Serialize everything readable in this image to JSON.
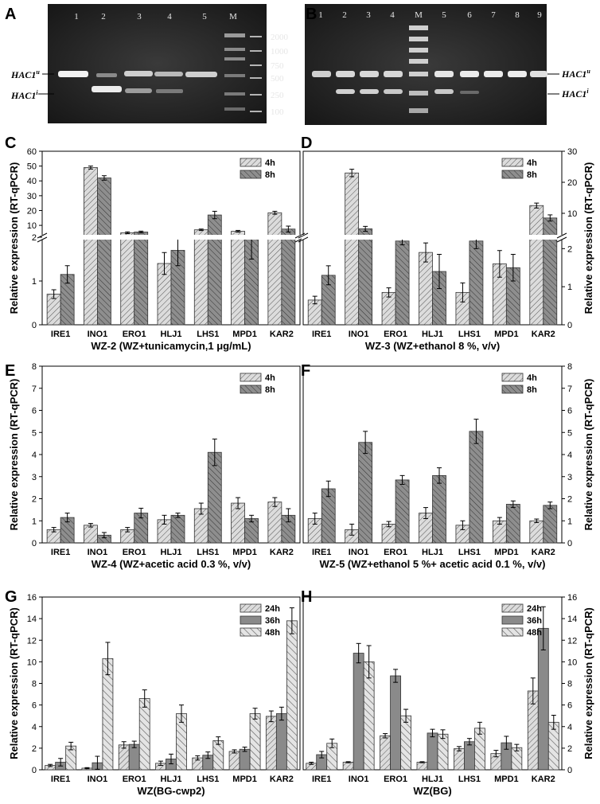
{
  "panel_letters": [
    "A",
    "B",
    "C",
    "D",
    "E",
    "F",
    "G",
    "H"
  ],
  "gels": [
    {
      "letter": "A",
      "lanes": [
        "1",
        "2",
        "3",
        "4",
        "5",
        "M"
      ],
      "marker_sizes": [
        "2000",
        "1000",
        "750",
        "500",
        "250",
        "100"
      ],
      "band_labels": {
        "u": "HAC1",
        "u_sup": "u",
        "i": "HAC1",
        "i_sup": "i"
      }
    },
    {
      "letter": "B",
      "lanes": [
        "1",
        "2",
        "3",
        "4",
        "M",
        "5",
        "6",
        "7",
        "8",
        "9"
      ],
      "band_labels": {
        "u": "HAC1",
        "u_sup": "u",
        "i": "HAC1",
        "i_sup": "i"
      }
    }
  ],
  "chart_data": [
    {
      "id": "C",
      "type": "bar",
      "categories": [
        "IRE1",
        "INO1",
        "ERO1",
        "HLJ1",
        "LHS1",
        "MPD1",
        "KAR2"
      ],
      "series": [
        {
          "name": "4h",
          "values": [
            0.7,
            49,
            5,
            1.4,
            7,
            6,
            18.5
          ],
          "errors": [
            0.1,
            1,
            0.6,
            0.25,
            0.5,
            0.6,
            1
          ]
        },
        {
          "name": "8h",
          "values": [
            1.15,
            42,
            5.5,
            1.7,
            17,
            2,
            7.5
          ],
          "errors": [
            0.2,
            1.5,
            0.6,
            0.35,
            2.5,
            0.5,
            2
          ]
        }
      ],
      "xlabel": "WZ-2 (WZ+tunicamycin,1 μg/mL)",
      "ylabel": "Relative expression (RT-qPCR)",
      "axis_side": "left",
      "broken_axis": {
        "lower": [
          0,
          2
        ],
        "upper": [
          2,
          60
        ]
      },
      "yticks_lower": [
        "0",
        "1",
        "2"
      ],
      "yticks_upper": [
        "10",
        "20",
        "30",
        "40",
        "50",
        "60"
      ],
      "legend": "top-right"
    },
    {
      "id": "D",
      "type": "bar",
      "categories": [
        "IRE1",
        "INO1",
        "ERO1",
        "HLJ1",
        "LHS1",
        "MPD1",
        "KAR2"
      ],
      "series": [
        {
          "name": "4h",
          "values": [
            0.65,
            23,
            0.85,
            1.9,
            0.85,
            1.6,
            12.5
          ],
          "errors": [
            0.1,
            1.2,
            0.12,
            0.25,
            0.25,
            0.35,
            0.8
          ]
        },
        {
          "name": "8h",
          "values": [
            1.3,
            5,
            2.2,
            1.4,
            2.2,
            1.5,
            8.5
          ],
          "errors": [
            0.25,
            0.8,
            0.1,
            0.45,
            0.2,
            0.35,
            1
          ]
        }
      ],
      "xlabel": "WZ-3 (WZ+ethanol 8 %, v/v)",
      "ylabel": "Relative expression (RT-qPCR)",
      "axis_side": "right",
      "broken_axis": {
        "lower": [
          0,
          2.3
        ],
        "upper": [
          2.3,
          30
        ]
      },
      "yticks_lower": [
        "0",
        "1",
        "2"
      ],
      "yticks_upper": [
        "10",
        "20",
        "30"
      ],
      "legend": "top-right"
    },
    {
      "id": "E",
      "type": "bar",
      "categories": [
        "IRE1",
        "INO1",
        "ERO1",
        "HLJ1",
        "LHS1",
        "MPD1",
        "KAR2"
      ],
      "series": [
        {
          "name": "4h",
          "values": [
            0.6,
            0.8,
            0.6,
            1.05,
            1.55,
            1.8,
            1.85
          ],
          "errors": [
            0.1,
            0.08,
            0.1,
            0.2,
            0.25,
            0.25,
            0.2
          ]
        },
        {
          "name": "8h",
          "values": [
            1.15,
            0.35,
            1.35,
            1.25,
            4.1,
            1.1,
            1.25
          ],
          "errors": [
            0.2,
            0.12,
            0.22,
            0.1,
            0.6,
            0.15,
            0.3
          ]
        }
      ],
      "xlabel": "WZ-4 (WZ+acetic acid 0.3 %, v/v)",
      "ylabel": "Relative expression (RT-qPCR)",
      "axis_side": "left",
      "ylim": [
        0,
        8
      ],
      "yticks": [
        "0",
        "1",
        "2",
        "3",
        "4",
        "5",
        "6",
        "7",
        "8"
      ],
      "legend": "top-right"
    },
    {
      "id": "F",
      "type": "bar",
      "categories": [
        "IRE1",
        "INO1",
        "ERO1",
        "HLJ1",
        "LHS1",
        "MPD1",
        "KAR2"
      ],
      "series": [
        {
          "name": "4h",
          "values": [
            1.1,
            0.6,
            0.85,
            1.35,
            0.8,
            1,
            1
          ],
          "errors": [
            0.25,
            0.25,
            0.12,
            0.25,
            0.2,
            0.15,
            0.08
          ]
        },
        {
          "name": "8h",
          "values": [
            2.45,
            4.55,
            2.85,
            3.05,
            5.05,
            1.75,
            1.7
          ],
          "errors": [
            0.35,
            0.5,
            0.2,
            0.35,
            0.55,
            0.15,
            0.15
          ]
        }
      ],
      "xlabel": "WZ-5 (WZ+ethanol 5 %+ acetic acid 0.1 %, v/v)",
      "ylabel": "Relative expression (RT-qPCR)",
      "axis_side": "right",
      "ylim": [
        0,
        8
      ],
      "yticks": [
        "0",
        "1",
        "2",
        "3",
        "4",
        "5",
        "6",
        "7",
        "8"
      ],
      "legend": "top-right"
    },
    {
      "id": "G",
      "type": "bar",
      "categories": [
        "IRE1",
        "INO1",
        "ERO1",
        "HLJ1",
        "LHS1",
        "MPD1",
        "KAR2"
      ],
      "series": [
        {
          "name": "24h",
          "values": [
            0.4,
            0.15,
            2.3,
            0.6,
            1.1,
            1.7,
            4.95
          ],
          "errors": [
            0.1,
            0.05,
            0.3,
            0.2,
            0.2,
            0.15,
            0.5
          ]
        },
        {
          "name": "36h",
          "values": [
            0.7,
            0.65,
            2.35,
            1,
            1.35,
            1.9,
            5.2
          ],
          "errors": [
            0.35,
            0.6,
            0.3,
            0.45,
            0.3,
            0.2,
            0.6
          ]
        },
        {
          "name": "48h",
          "values": [
            2.2,
            10.3,
            6.6,
            5.2,
            2.7,
            5.2,
            13.8
          ],
          "errors": [
            0.35,
            1.5,
            0.8,
            0.8,
            0.35,
            0.5,
            1.2
          ]
        }
      ],
      "xlabel": "WZ(BG-cwp2)",
      "ylabel": "Relative expression (RT-qPCR)",
      "axis_side": "left",
      "ylim": [
        0,
        16
      ],
      "yticks": [
        "0",
        "2",
        "4",
        "6",
        "8",
        "10",
        "12",
        "14",
        "16"
      ],
      "legend": "top-right"
    },
    {
      "id": "H",
      "type": "bar",
      "categories": [
        "IRE1",
        "INO1",
        "ERO1",
        "HLJ1",
        "LHS1",
        "MPD1",
        "KAR2"
      ],
      "series": [
        {
          "name": "24h",
          "values": [
            0.6,
            0.7,
            3.15,
            0.7,
            1.95,
            1.5,
            7.3
          ],
          "errors": [
            0.1,
            0.05,
            0.2,
            0.05,
            0.2,
            0.3,
            1.2
          ]
        },
        {
          "name": "36h",
          "values": [
            1.4,
            10.8,
            8.7,
            3.4,
            2.6,
            2.5,
            13.1
          ],
          "errors": [
            0.3,
            0.9,
            0.6,
            0.35,
            0.3,
            0.6,
            2
          ]
        },
        {
          "name": "48h",
          "values": [
            2.45,
            10,
            5,
            3.3,
            3.85,
            2.05,
            4.4
          ],
          "errors": [
            0.4,
            1.5,
            0.6,
            0.4,
            0.55,
            0.3,
            0.65
          ]
        }
      ],
      "xlabel": "WZ(BG)",
      "ylabel": "Relative expression (RT-qPCR)",
      "axis_side": "right",
      "ylim": [
        0,
        16
      ],
      "yticks": [
        "0",
        "2",
        "4",
        "6",
        "8",
        "10",
        "12",
        "14",
        "16"
      ],
      "legend": "top-right"
    }
  ]
}
